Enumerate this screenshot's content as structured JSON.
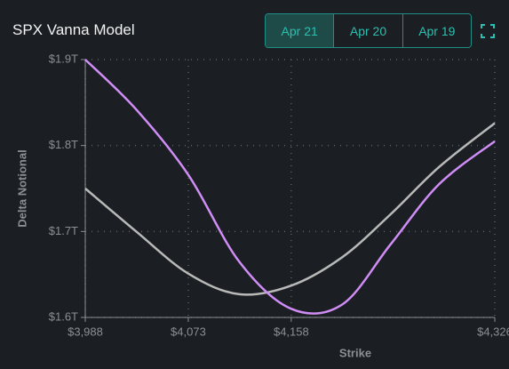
{
  "header": {
    "title": "SPX Vanna Model",
    "tabs": [
      "Apr 21",
      "Apr 20",
      "Apr 19"
    ],
    "active_tab": 0
  },
  "chart_data": {
    "type": "line",
    "x_label": "Strike",
    "y_label": "Delta Notional",
    "x": [
      3988,
      4030,
      4073,
      4115,
      4158,
      4200,
      4240,
      4280,
      4326
    ],
    "series": [
      {
        "color": "#cf8df5",
        "values": [
          1.9,
          1.842,
          1.766,
          1.665,
          1.61,
          1.615,
          1.685,
          1.755,
          1.805
        ]
      },
      {
        "color": "#b9b9b9",
        "values": [
          1.75,
          1.7,
          1.651,
          1.627,
          1.637,
          1.67,
          1.72,
          1.775,
          1.826
        ]
      }
    ],
    "xlim": [
      3988,
      4326
    ],
    "xticks": [
      {
        "value": 3988,
        "label": "$3,988"
      },
      {
        "value": 4073,
        "label": "$4,073"
      },
      {
        "value": 4158,
        "label": "$4,158"
      },
      {
        "value": 4326,
        "label": "$4,326"
      }
    ],
    "ylim": [
      1.6,
      1.9
    ],
    "yticks": [
      {
        "value": 1.6,
        "label": "$1.6T"
      },
      {
        "value": 1.7,
        "label": "$1.7T"
      },
      {
        "value": 1.8,
        "label": "$1.8T"
      },
      {
        "value": 1.9,
        "label": "$1.9T"
      }
    ],
    "grid": true
  }
}
